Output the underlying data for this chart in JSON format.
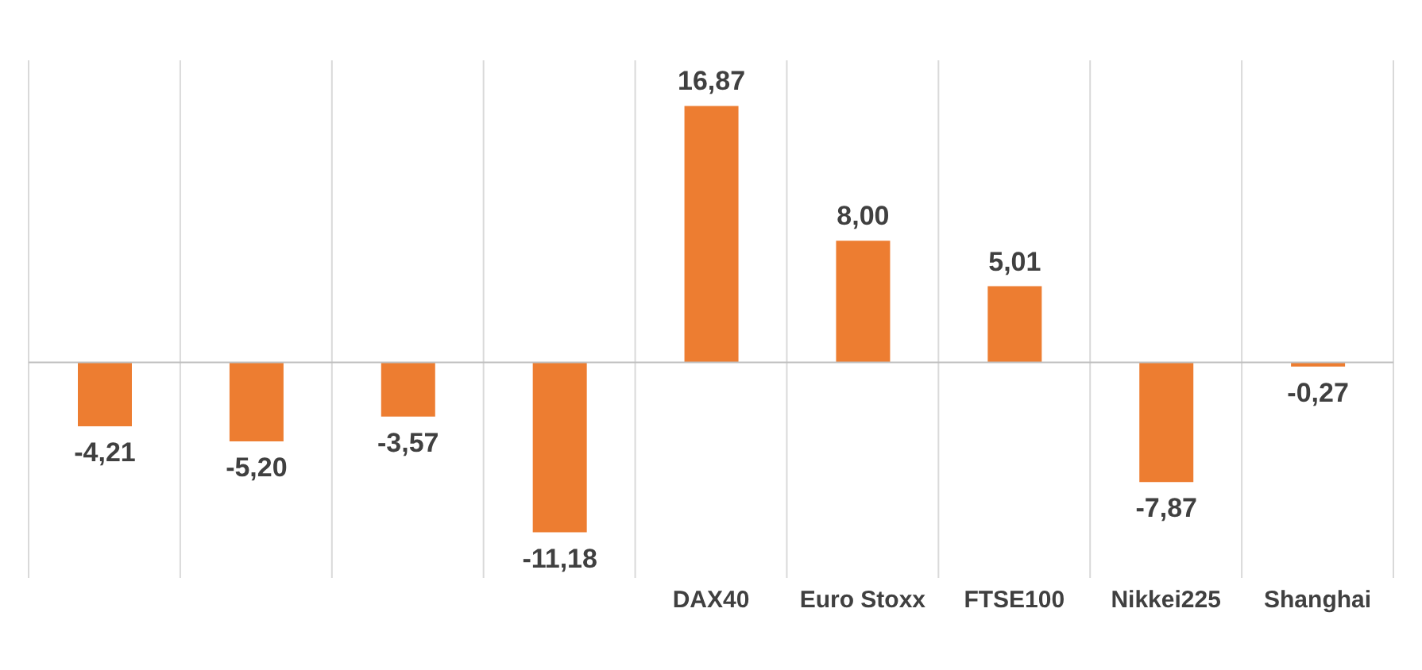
{
  "chart_data": {
    "type": "bar",
    "categories": [
      null,
      null,
      null,
      null,
      "DAX40",
      "Euro Stoxx",
      "FTSE100",
      "Nikkei225",
      "Shanghai"
    ],
    "values": [
      -4.21,
      -5.2,
      -3.57,
      -11.18,
      16.87,
      8.0,
      5.01,
      -7.87,
      -0.27
    ],
    "value_labels": [
      "-4,21",
      "-5,20",
      "-3,57",
      "-11,18",
      "16,87",
      "8,00",
      "5,01",
      "-7,87",
      "-0,27"
    ],
    "color": "#ed7d31",
    "grid": "x"
  }
}
